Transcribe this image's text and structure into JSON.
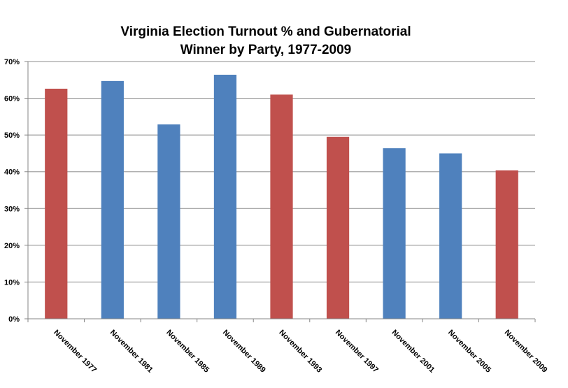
{
  "chart_data": {
    "type": "bar",
    "title_lines": [
      "Virginia Election Turnout % and Gubernatorial",
      "Winner by Party, 1977-2009"
    ],
    "categories": [
      "November 1977",
      "November 1981",
      "November 1985",
      "November 1989",
      "November 1993",
      "November 1997",
      "November 2001",
      "November 2005",
      "November 2009"
    ],
    "values": [
      62.6,
      64.7,
      52.9,
      66.4,
      61.0,
      49.5,
      46.4,
      45.0,
      40.4
    ],
    "bar_colors": [
      "#C0504D",
      "#4F81BD",
      "#4F81BD",
      "#4F81BD",
      "#C0504D",
      "#C0504D",
      "#4F81BD",
      "#4F81BD",
      "#C0504D"
    ],
    "ylim": [
      0,
      70
    ],
    "yticks": [
      0,
      10,
      20,
      30,
      40,
      50,
      60,
      70
    ],
    "ytick_labels": [
      "0%",
      "10%",
      "20%",
      "30%",
      "40%",
      "50%",
      "60%",
      "70%"
    ],
    "grid": true,
    "legend": "none",
    "xlabel": "",
    "ylabel": ""
  },
  "colors": {
    "red": "#C0504D",
    "blue": "#4F81BD",
    "grid": "#8C8C8C",
    "axis": "#868686"
  }
}
